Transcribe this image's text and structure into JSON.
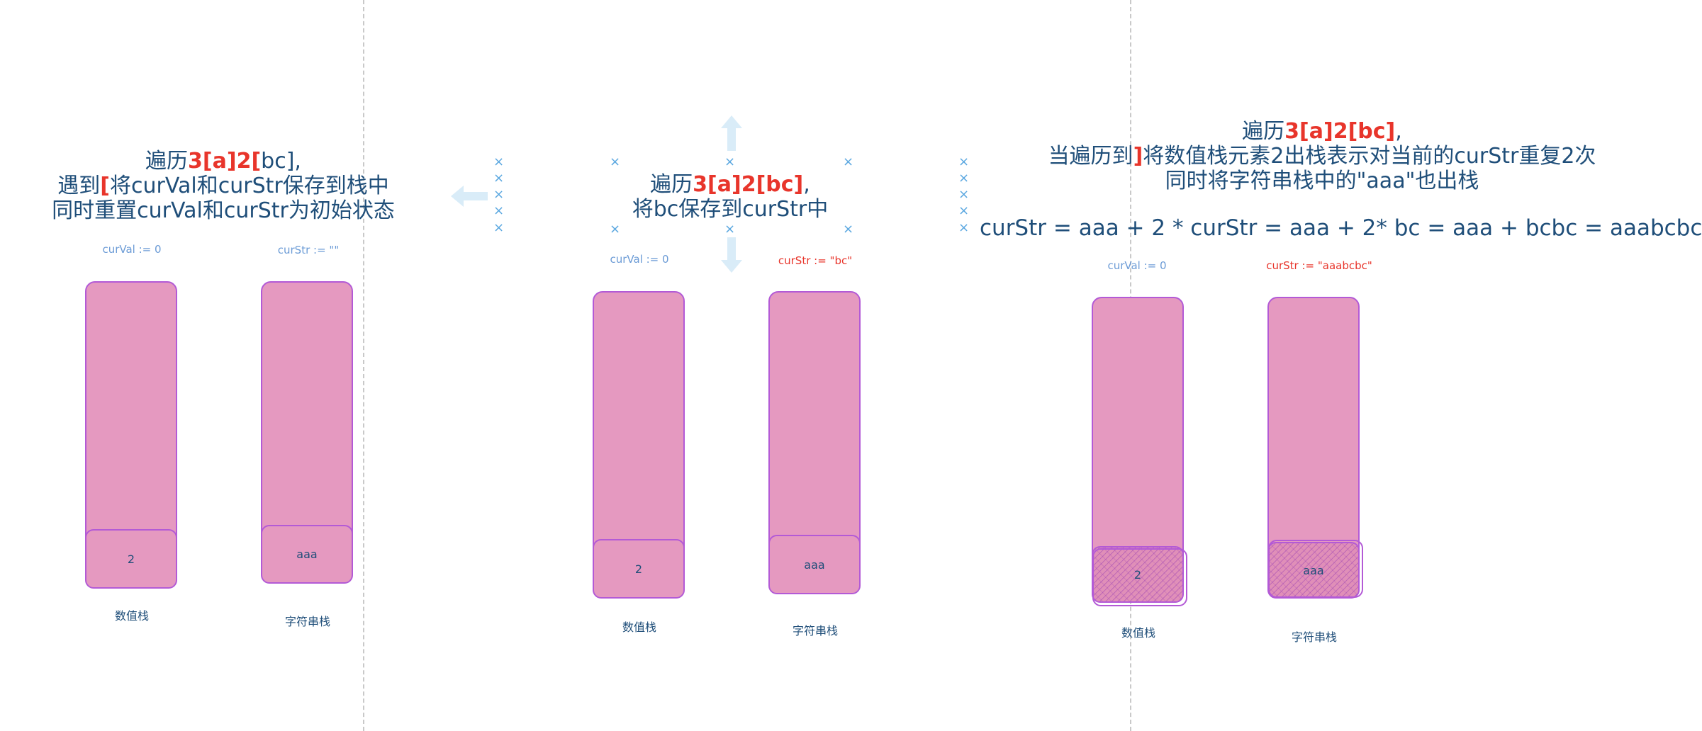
{
  "panel1": {
    "title": {
      "l1_pre": "遍历",
      "l1_hl": "3[a]2[",
      "l1_post": "bc],",
      "l2_pre": "遇到",
      "l2_hl": "[",
      "l2_post": "将curVal和curStr保存到栈中",
      "l3": "同时重置curVal和curStr为初始状态"
    },
    "cur_val": "curVal := 0",
    "cur_str": "curStr := \"\"",
    "num_stack": {
      "elem": "2",
      "caption": "数值栈"
    },
    "str_stack": {
      "elem": "aaa",
      "caption": "字符串栈"
    }
  },
  "panel2": {
    "title": {
      "l1_pre": "遍历",
      "l1_hl": "3[a]2[bc]",
      "l1_post": ",",
      "l2": "将bc保存到curStr中"
    },
    "cur_val": "curVal := 0",
    "cur_str": "curStr := \"bc\"",
    "num_stack": {
      "elem": "2",
      "caption": "数值栈"
    },
    "str_stack": {
      "elem": "aaa",
      "caption": "字符串栈"
    }
  },
  "panel3": {
    "title": {
      "l1_pre": "遍历",
      "l1_hl": "3[a]2[bc]",
      "l1_post": ",",
      "l2_pre": "当遍历到",
      "l2_hl": "]",
      "l2_post": "将数值栈元素2出栈表示对当前的curStr重复2次",
      "l3": "同时将字符串栈中的\"aaa\"也出栈"
    },
    "formula": "curStr = aaa + 2 * curStr = aaa + 2* bc = aaa + bcbc = aaabcbc",
    "cur_val": "curVal := 0",
    "cur_str": "curStr := \"aaabcbc\"",
    "num_stack": {
      "elem": "2",
      "caption": "数值栈"
    },
    "str_stack": {
      "elem": "aaa",
      "caption": "字符串栈"
    }
  },
  "colors": {
    "text": "#1f4e79",
    "highlight": "#e8352b",
    "stack_fill": "#e599c0",
    "stack_border": "#b35ad6",
    "var_blue": "#6b9bd6",
    "selection_handle": "#5aa7e0",
    "arrow_light": "#d9ecf8"
  },
  "icons": [
    "arrow-left-icon",
    "arrow-up-icon",
    "arrow-down-icon",
    "x-handle-icon"
  ]
}
